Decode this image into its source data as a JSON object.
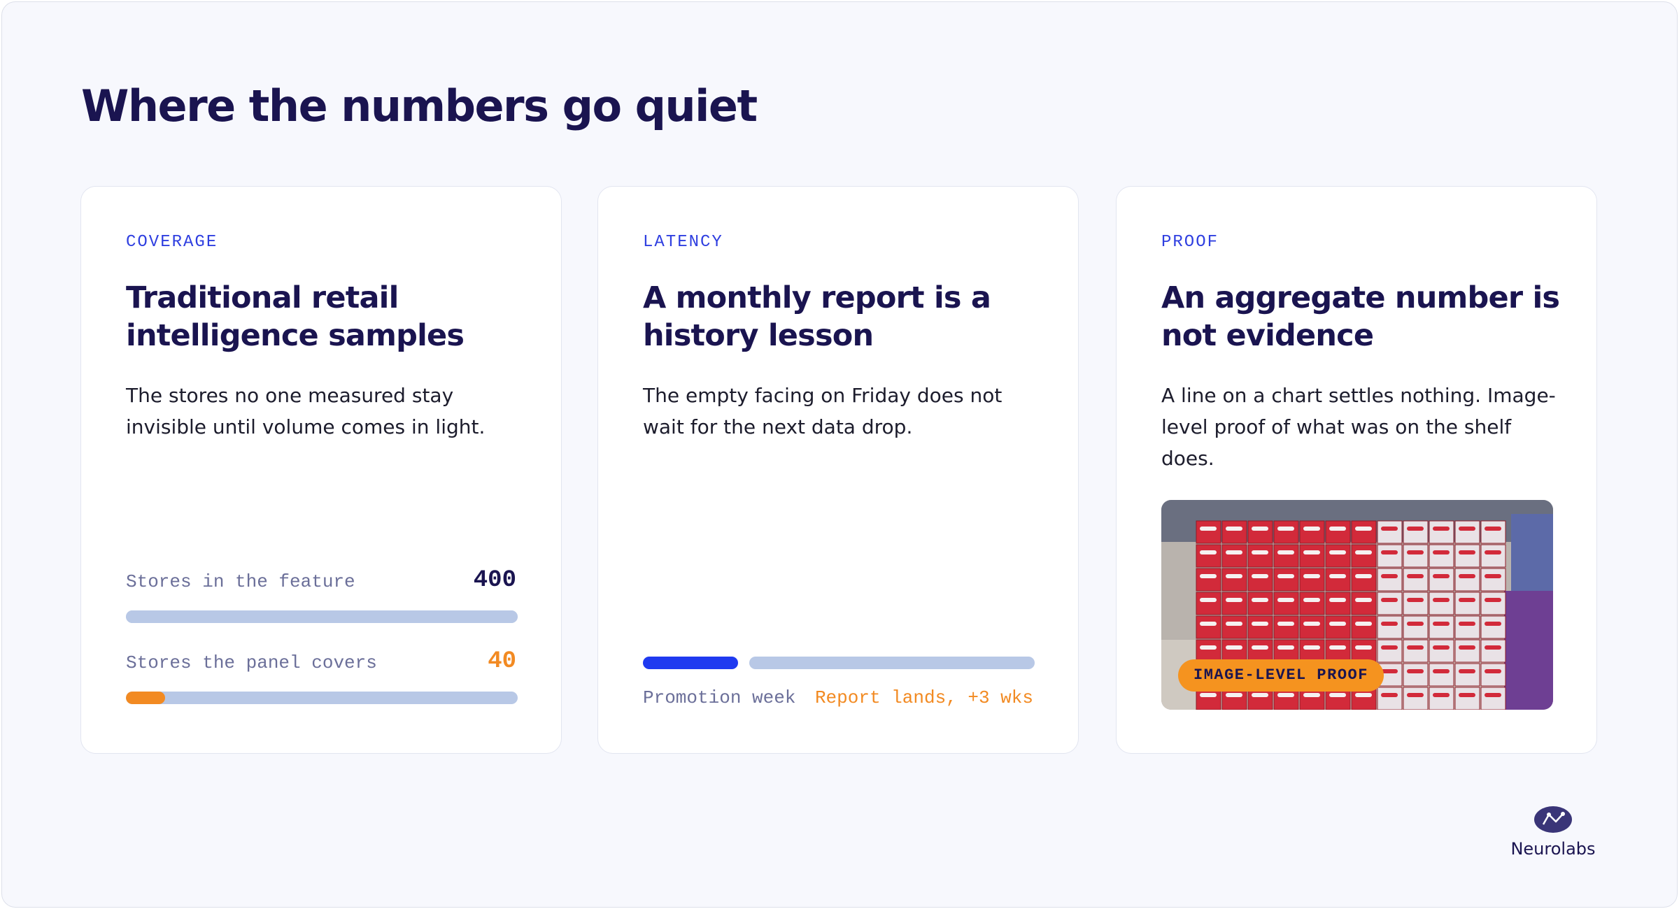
{
  "header": {
    "title": "Where the numbers go quiet"
  },
  "cards": [
    {
      "label": "COVERAGE",
      "heading": [
        "Traditional retail",
        "intelligence samples"
      ],
      "body": [
        "The stores no one measured stay",
        "invisible until volume comes in light."
      ],
      "metrics": [
        {
          "name": "Stores in the feature",
          "value": 400
        },
        {
          "name": "Stores the panel covers",
          "value": 40
        }
      ]
    },
    {
      "label": "LATENCY",
      "heading": [
        "A monthly report is a",
        "history lesson"
      ],
      "body": [
        "The empty facing on Friday does not",
        "wait for the next data drop."
      ],
      "timeline": {
        "start": "Promotion week",
        "end": "Report lands, +3 wks"
      }
    },
    {
      "label": "PROOF",
      "heading": [
        "An aggregate number is",
        "not evidence"
      ],
      "body": [
        "A line on a chart settles nothing. Image-",
        "level proof of what was on the shelf",
        "does."
      ],
      "badge": "IMAGE-LEVEL PROOF"
    }
  ],
  "footer": {
    "brand": "Neurolabs"
  }
}
